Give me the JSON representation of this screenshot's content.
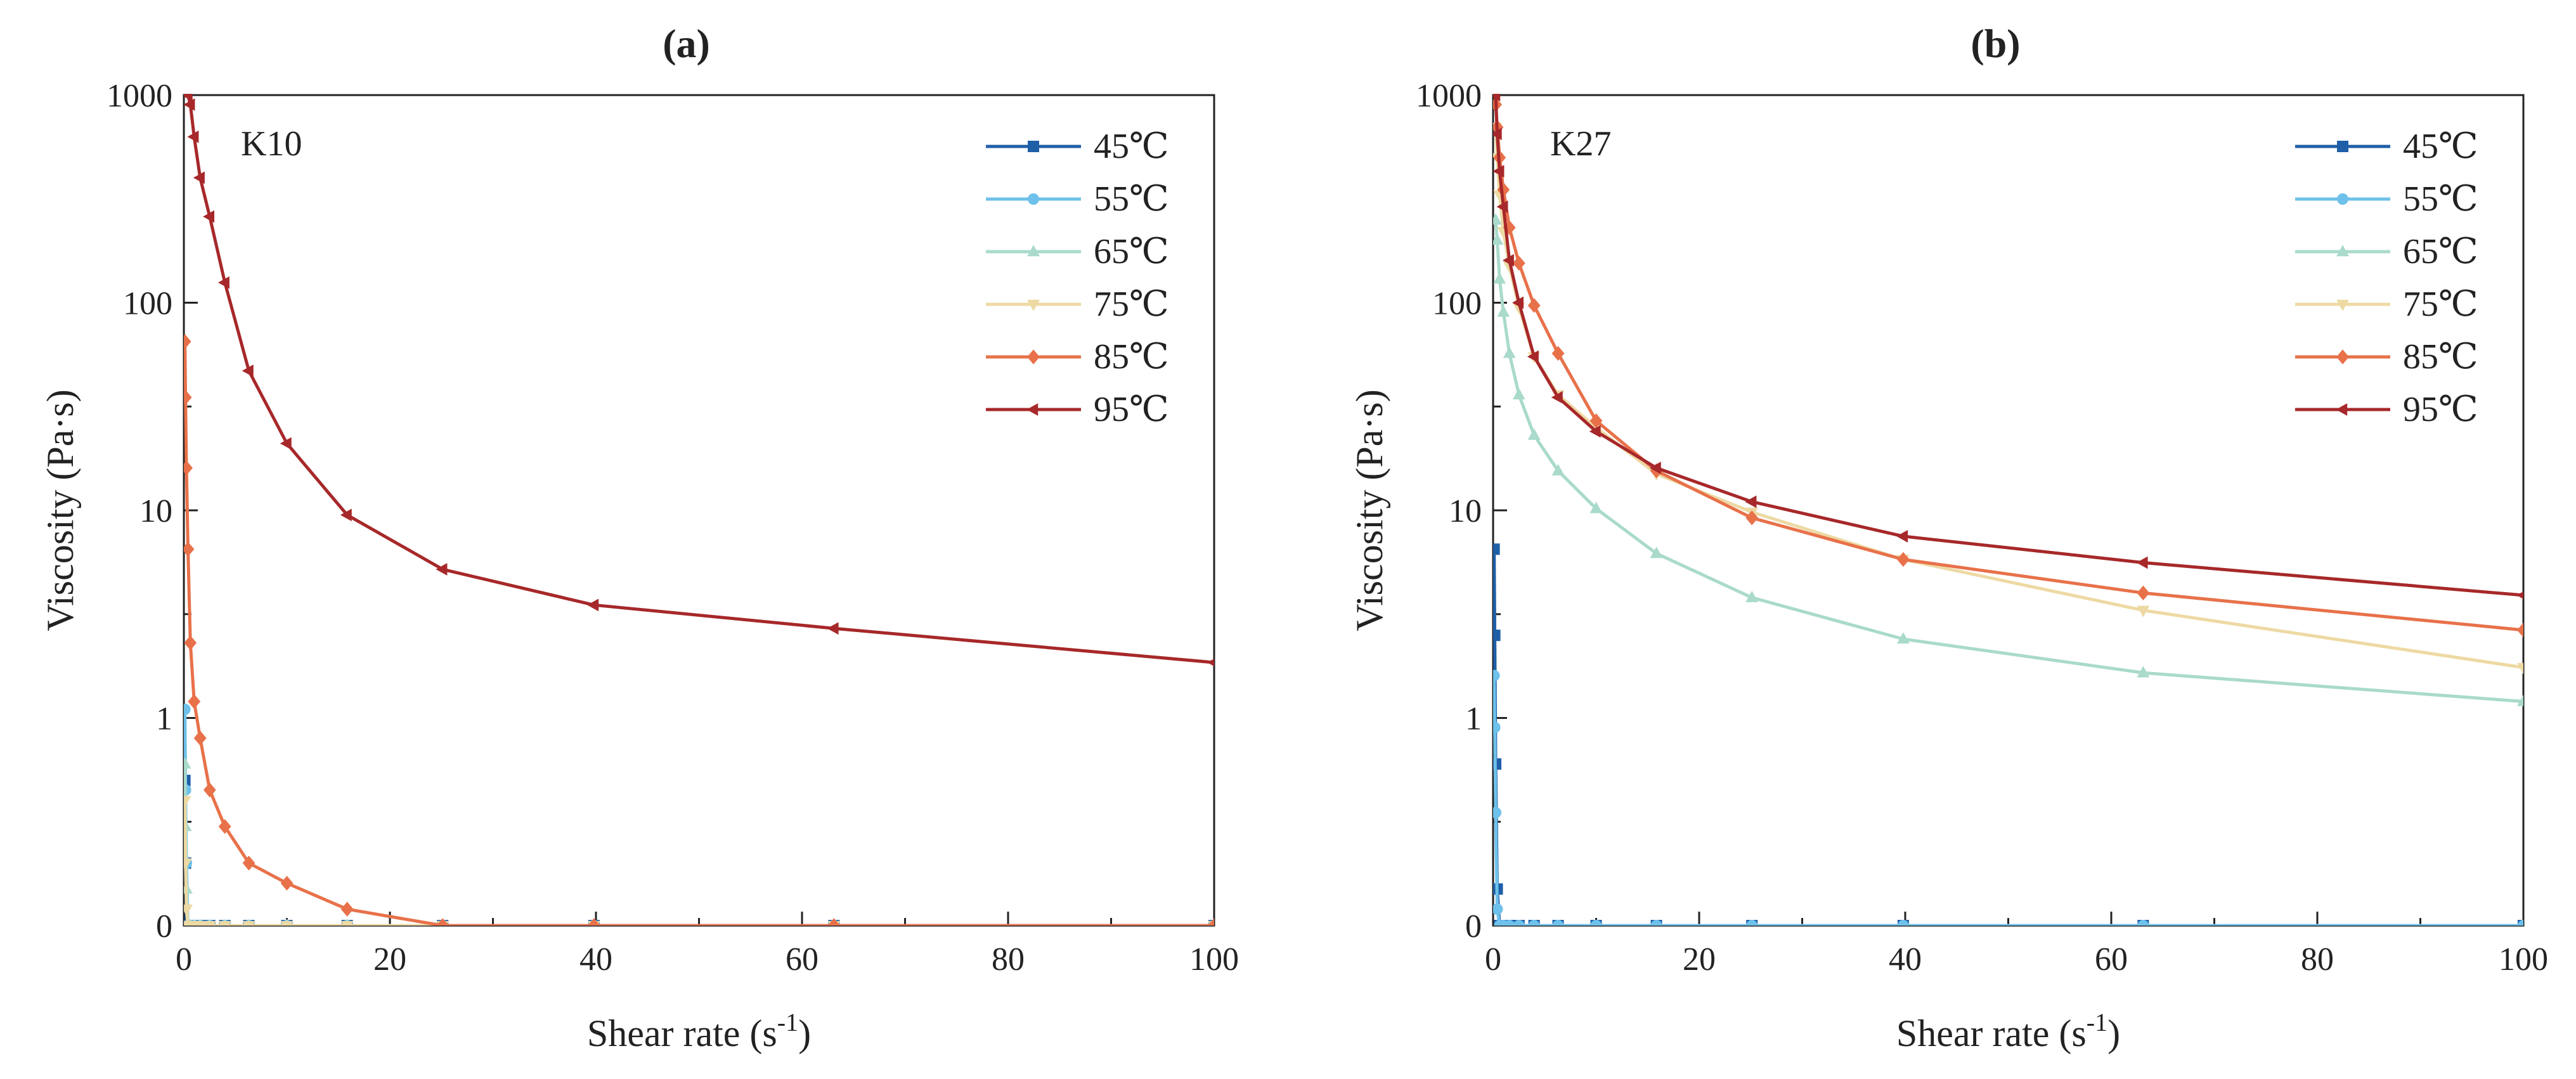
{
  "chart_data": [
    {
      "type": "line",
      "panel_label": "(a)",
      "annotation": "K10",
      "xlabel": "Shear rate (s",
      "xlabel_sup": "-1",
      "xlabel_close": ")",
      "ylabel": "Viscosity (Pa·s)",
      "xlim": [
        0,
        100
      ],
      "xticks": [
        0,
        20,
        40,
        60,
        80,
        100
      ],
      "xtick_labels": [
        "0",
        "20",
        "40",
        "60",
        "80",
        "100"
      ],
      "yscale": "log (0 shown at bottom)",
      "yticks": [
        0,
        1,
        10,
        100,
        1000
      ],
      "ytick_labels": [
        "0",
        "1",
        "10",
        "100",
        "1000"
      ],
      "legend_position": "top-right",
      "series": [
        {
          "name": "45℃",
          "color": "#1F5FA8",
          "marker": "square",
          "x": [
            0.1,
            0.16,
            0.25,
            0.4,
            0.63,
            1,
            1.58,
            2.51,
            3.98,
            6.31,
            10,
            15.85,
            25.12,
            39.81,
            63.1,
            100
          ],
          "y": [
            0.5,
            0.2,
            0.1,
            0.06,
            0.04,
            0.025,
            0.018,
            0.012,
            0.009,
            0.007,
            0.005,
            0.004,
            0.003,
            0.0025,
            0.002,
            0.002
          ]
        },
        {
          "name": "55℃",
          "color": "#6EC1EA",
          "marker": "circle",
          "x": [
            0.1,
            0.16,
            0.25,
            0.4,
            0.63,
            1,
            1.58,
            2.51,
            3.98,
            6.31,
            10,
            15.85,
            25.12,
            39.81,
            63.1,
            100
          ],
          "y": [
            1.1,
            0.45,
            0.2,
            0.1,
            0.05,
            0.03,
            0.02,
            0.013,
            0.009,
            0.007,
            0.005,
            0.004,
            0.003,
            0.0025,
            0.002,
            0.002
          ]
        },
        {
          "name": "65℃",
          "color": "#A9DACB",
          "marker": "triangle-up",
          "x": [
            0.1,
            0.16,
            0.25,
            0.4,
            0.63,
            1,
            1.58,
            2.51,
            3.98,
            6.31,
            10,
            15.85,
            25.12,
            39.81,
            63.1,
            100
          ],
          "y": [
            0.6,
            0.3,
            0.15,
            0.08,
            0.05,
            0.03,
            0.02,
            0.013,
            0.009,
            0.007,
            0.005,
            0.004,
            0.003,
            0.0025,
            0.002,
            0.002
          ]
        },
        {
          "name": "75℃",
          "color": "#EDD9A3",
          "marker": "triangle-down",
          "x": [
            0.1,
            0.16,
            0.25,
            0.4,
            0.63,
            1,
            1.58,
            2.51,
            3.98,
            6.31,
            10,
            15.85,
            25.12,
            39.81,
            63.1,
            100
          ],
          "y": [
            0.4,
            0.2,
            0.12,
            0.08,
            0.05,
            0.035,
            0.025,
            0.018,
            0.012,
            0.009,
            0.007,
            0.005,
            0.004,
            0.003,
            0.0025,
            0.002
          ]
        },
        {
          "name": "85℃",
          "color": "#E8714A",
          "marker": "diamond",
          "x": [
            0.1,
            0.16,
            0.25,
            0.4,
            0.63,
            1,
            1.58,
            2.51,
            3.98,
            6.31,
            10,
            15.85,
            25.12,
            39.81,
            63.1,
            100
          ],
          "y": [
            65,
            35,
            16,
            6.5,
            2.3,
            1.2,
            0.8,
            0.45,
            0.3,
            0.2,
            0.16,
            0.12,
            0.1,
            0.08,
            0.075,
            0.07
          ]
        },
        {
          "name": "95℃",
          "color": "#A7282A",
          "marker": "triangle-left",
          "x": [
            0.4,
            0.63,
            1,
            1.58,
            2.51,
            3.98,
            6.31,
            10,
            15.85,
            25.12,
            39.81,
            63.1,
            100
          ],
          "y": [
            1000,
            900,
            630,
            400,
            260,
            125,
            47,
            21,
            9.5,
            5.2,
            3.5,
            2.7,
            1.85
          ]
        }
      ]
    },
    {
      "type": "line",
      "panel_label": "(b)",
      "annotation": "K27",
      "xlabel": "Shear rate (s",
      "xlabel_sup": "-1",
      "xlabel_close": ")",
      "ylabel": "Viscosity (Pa·s)",
      "xlim": [
        0,
        100
      ],
      "xticks": [
        0,
        20,
        40,
        60,
        80,
        100
      ],
      "xtick_labels": [
        "0",
        "20",
        "40",
        "60",
        "80",
        "100"
      ],
      "yscale": "log (0 shown at bottom)",
      "yticks": [
        0,
        1,
        10,
        100,
        1000
      ],
      "ytick_labels": [
        "0",
        "1",
        "10",
        "100",
        "1000"
      ],
      "legend_position": "top-right",
      "series": [
        {
          "name": "45℃",
          "color": "#1F5FA8",
          "marker": "square",
          "x": [
            0.1,
            0.16,
            0.25,
            0.4,
            0.63,
            1,
            1.58,
            2.51,
            3.98,
            6.31,
            10,
            15.85,
            25.12,
            39.81,
            63.1,
            100
          ],
          "y": [
            6.5,
            2.5,
            0.6,
            0.15,
            0.05,
            0.03,
            0.02,
            0.015,
            0.012,
            0.01,
            0.008,
            0.007,
            0.006,
            0.005,
            0.005,
            0.004
          ]
        },
        {
          "name": "55℃",
          "color": "#6EC1EA",
          "marker": "circle",
          "x": [
            0.1,
            0.16,
            0.25,
            0.4,
            0.63,
            1,
            1.58,
            2.51,
            3.98,
            6.31,
            10,
            15.85,
            25.12,
            39.81,
            63.1,
            100
          ],
          "y": [
            1.6,
            0.9,
            0.35,
            0.12,
            0.05,
            0.03,
            0.02,
            0.015,
            0.012,
            0.01,
            0.008,
            0.007,
            0.006,
            0.005,
            0.005,
            0.004
          ]
        },
        {
          "name": "65℃",
          "color": "#A9DACB",
          "marker": "triangle-up",
          "x": [
            0.25,
            0.4,
            0.63,
            1,
            1.58,
            2.51,
            3.98,
            6.31,
            10,
            15.85,
            25.12,
            39.81,
            63.1,
            100
          ],
          "y": [
            250,
            200,
            130,
            90,
            57,
            36,
            23,
            15.5,
            10.2,
            6.2,
            3.8,
            2.4,
            1.65,
            1.2
          ]
        },
        {
          "name": "75℃",
          "color": "#EDD9A3",
          "marker": "triangle-down",
          "x": [
            0.25,
            0.4,
            0.63,
            1,
            1.58,
            2.51,
            3.98,
            6.31,
            10,
            15.85,
            25.12,
            39.81,
            63.1,
            100
          ],
          "y": [
            700,
            500,
            330,
            220,
            150,
            95,
            55,
            36,
            25,
            15,
            9.8,
            5.8,
            3.3,
            1.75
          ]
        },
        {
          "name": "85℃",
          "color": "#E8714A",
          "marker": "diamond",
          "x": [
            0.25,
            0.4,
            0.63,
            1,
            1.58,
            2.51,
            3.98,
            6.31,
            10,
            15.85,
            25.12,
            39.81,
            63.1,
            100
          ],
          "y": [
            900,
            700,
            500,
            350,
            230,
            155,
            97,
            57,
            27,
            15.5,
            9.2,
            5.8,
            4.0,
            2.65
          ]
        },
        {
          "name": "95℃",
          "color": "#A7282A",
          "marker": "triangle-left",
          "x": [
            0.25,
            0.4,
            0.63,
            1,
            1.58,
            2.51,
            3.98,
            6.31,
            10,
            15.85,
            25.12,
            39.81,
            63.1,
            100
          ],
          "y": [
            1000,
            650,
            430,
            290,
            160,
            100,
            55,
            35,
            24,
            16,
            11,
            7.5,
            5.6,
            3.9
          ]
        }
      ]
    }
  ]
}
